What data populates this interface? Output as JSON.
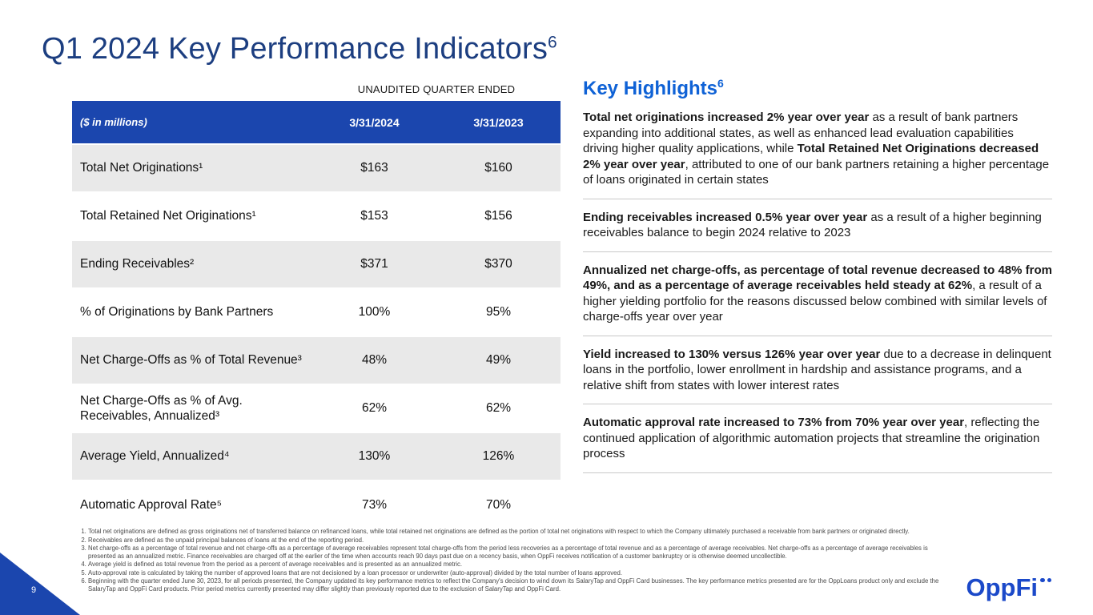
{
  "slide": {
    "title": "Q1 2024 Key Performance Indicators",
    "title_sup": "6",
    "page_number": "9",
    "logo_text": "OppFi"
  },
  "colors": {
    "title_navy": "#1c3e80",
    "table_header_blue": "#1b46ae",
    "row_gray": "#e9e9e9",
    "highlight_blue": "#0f62d6",
    "logo_blue": "#1b49c9"
  },
  "table": {
    "caption": "UNAUDITED QUARTER ENDED",
    "columns": [
      "($ in millions)",
      "3/31/2024",
      "3/31/2023"
    ],
    "rows": [
      {
        "label": "Total Net Originations¹",
        "q1_2024": "$163",
        "q1_2023": "$160"
      },
      {
        "label": "Total Retained Net Originations¹",
        "q1_2024": "$153",
        "q1_2023": "$156"
      },
      {
        "label": "Ending Receivables²",
        "q1_2024": "$371",
        "q1_2023": "$370"
      },
      {
        "label": "% of Originations by Bank Partners",
        "q1_2024": "100%",
        "q1_2023": "95%"
      },
      {
        "label": "Net Charge-Offs as % of Total Revenue³",
        "q1_2024": "48%",
        "q1_2023": "49%"
      },
      {
        "label": "Net Charge-Offs as % of Avg. Receivables, Annualized³",
        "q1_2024": "62%",
        "q1_2023": "62%"
      },
      {
        "label": "Average Yield, Annualized⁴",
        "q1_2024": "130%",
        "q1_2023": "126%"
      },
      {
        "label": "Automatic Approval Rate⁵",
        "q1_2024": "73%",
        "q1_2023": "70%"
      }
    ]
  },
  "highlights": {
    "heading": "Key Highlights",
    "heading_sup": "6",
    "items": [
      {
        "segments": [
          {
            "bold": true,
            "text": "Total net originations increased 2% year over year"
          },
          {
            "bold": false,
            "text": " as a result of bank partners expanding into additional states, as well as enhanced lead evaluation capabilities driving higher quality applications, while "
          },
          {
            "bold": true,
            "text": "Total Retained Net Originations decreased 2% year over year"
          },
          {
            "bold": false,
            "text": ", attributed to one of our bank partners retaining a higher percentage of loans originated in certain states"
          }
        ]
      },
      {
        "segments": [
          {
            "bold": true,
            "text": "Ending receivables increased 0.5% year over year"
          },
          {
            "bold": false,
            "text": " as a result of a higher beginning receivables balance to begin 2024 relative to 2023"
          }
        ]
      },
      {
        "segments": [
          {
            "bold": true,
            "text": "Annualized net charge-offs, as percentage of total revenue decreased to 48% from 49%, and as a percentage of average receivables held steady at 62%"
          },
          {
            "bold": false,
            "text": ", a result of a higher yielding portfolio for the reasons discussed below combined with similar levels of charge-offs year over year"
          }
        ]
      },
      {
        "segments": [
          {
            "bold": true,
            "text": "Yield increased to 130% versus 126% year over year"
          },
          {
            "bold": false,
            "text": " due to a decrease in delinquent loans in the portfolio, lower enrollment in hardship and assistance programs, and a relative shift from states with lower interest rates"
          }
        ]
      },
      {
        "segments": [
          {
            "bold": true,
            "text": "Automatic approval rate increased to 73% from 70% year over year"
          },
          {
            "bold": false,
            "text": ", reflecting the continued application of algorithmic automation projects that streamline the origination process"
          }
        ]
      }
    ]
  },
  "footnotes": [
    "Total net originations are defined as gross originations net of transferred balance on refinanced loans, while total retained net originations are defined as the portion of total net originations with respect to which the Company ultimately purchased a receivable from bank partners or originated directly.",
    "Receivables are defined as the unpaid principal balances of loans at the end of the reporting period.",
    "Net charge-offs as a percentage of total revenue and net charge-offs as a percentage of average receivables represent total charge-offs from the period less recoveries as a percentage of total revenue and as a percentage of average receivables. Net charge-offs as a percentage of average receivables is presented as an annualized metric. Finance receivables are charged off at the earlier of the time when accounts reach 90 days past due on a recency basis, when OppFi receives notification of a customer bankruptcy or is otherwise deemed uncollectible.",
    "Average yield is defined as total revenue from the period as a percent of average receivables and is presented as an annualized metric.",
    "Auto-approval rate is calculated by taking the number of approved loans that are not decisioned by a loan processor or underwriter (auto-approval) divided by the total number of loans approved.",
    "Beginning with the quarter ended June 30, 2023, for all periods presented, the Company updated its key performance metrics to reflect the Company's decision to wind down its SalaryTap and OppFi Card businesses. The key performance metrics presented are for the OppLoans product only and exclude the SalaryTap and OppFi Card products. Prior period metrics currently presented may differ slightly than previously reported due to the exclusion of SalaryTap and OppFi Card."
  ]
}
